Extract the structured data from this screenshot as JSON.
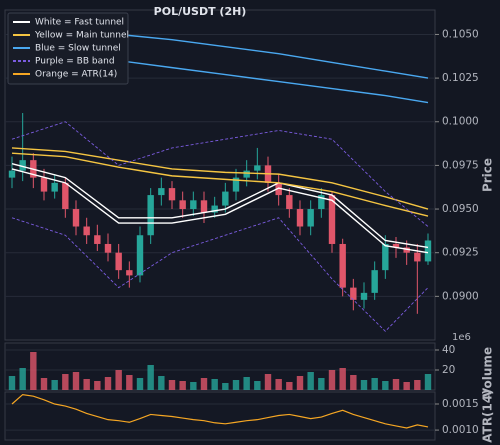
{
  "chart_data": {
    "type": "candlestick",
    "title": "POL/USDT (2H)",
    "up_color": "#26a69a",
    "down_color": "#e0566a",
    "grid": true,
    "legend": "upper left",
    "open": [
      0.0968,
      0.0972,
      0.0978,
      0.0968,
      0.096,
      0.0965,
      0.095,
      0.094,
      0.0935,
      0.093,
      0.0925,
      0.0915,
      0.0912,
      0.0935,
      0.0958,
      0.0962,
      0.0955,
      0.095,
      0.0955,
      0.0948,
      0.0952,
      0.096,
      0.0968,
      0.0972,
      0.0975,
      0.0965,
      0.0958,
      0.095,
      0.094,
      0.095,
      0.0958,
      0.093,
      0.0905,
      0.0898,
      0.0902,
      0.0915,
      0.093,
      0.0928,
      0.0925,
      0.092
    ],
    "high": [
      0.098,
      0.1005,
      0.0982,
      0.0973,
      0.097,
      0.0968,
      0.0955,
      0.0945,
      0.0941,
      0.0936,
      0.093,
      0.092,
      0.094,
      0.0962,
      0.0968,
      0.0966,
      0.096,
      0.096,
      0.096,
      0.0957,
      0.0965,
      0.0973,
      0.0978,
      0.0985,
      0.098,
      0.097,
      0.0962,
      0.0955,
      0.0955,
      0.0962,
      0.096,
      0.0933,
      0.091,
      0.0908,
      0.092,
      0.0935,
      0.0934,
      0.0932,
      0.093,
      0.0936
    ],
    "low": [
      0.0962,
      0.0966,
      0.0962,
      0.0955,
      0.0956,
      0.0945,
      0.0935,
      0.093,
      0.0926,
      0.092,
      0.091,
      0.0905,
      0.0908,
      0.093,
      0.0952,
      0.095,
      0.0945,
      0.0946,
      0.0942,
      0.0945,
      0.0948,
      0.0955,
      0.0963,
      0.0967,
      0.096,
      0.0952,
      0.0945,
      0.0935,
      0.0935,
      0.0945,
      0.0925,
      0.09,
      0.0892,
      0.0893,
      0.0898,
      0.091,
      0.0922,
      0.0918,
      0.089,
      0.0918
    ],
    "close": [
      0.0972,
      0.0978,
      0.0968,
      0.096,
      0.0965,
      0.095,
      0.094,
      0.0935,
      0.093,
      0.0925,
      0.0915,
      0.0912,
      0.0935,
      0.0958,
      0.0962,
      0.0955,
      0.095,
      0.0955,
      0.0948,
      0.0952,
      0.096,
      0.0968,
      0.0972,
      0.0975,
      0.0965,
      0.0958,
      0.095,
      0.094,
      0.095,
      0.0958,
      0.093,
      0.0905,
      0.0898,
      0.0902,
      0.0915,
      0.093,
      0.0928,
      0.0925,
      0.092,
      0.0932
    ],
    "ylim": [
      0.0875,
      0.1064
    ],
    "yticks": [
      {
        "value": 0.09,
        "label": "0.0900"
      },
      {
        "value": 0.0925,
        "label": "0.0925"
      },
      {
        "value": 0.095,
        "label": "0.0950"
      },
      {
        "value": 0.0975,
        "label": "0.0975"
      },
      {
        "value": 0.1,
        "label": "0.1000"
      },
      {
        "value": 0.1025,
        "label": "0.1025"
      },
      {
        "value": 0.105,
        "label": "0.1050"
      }
    ],
    "ylabel": "Price",
    "line_x": [
      0,
      5,
      10,
      15,
      20,
      25,
      30,
      35,
      39
    ],
    "bands": [
      {
        "name": "White = Fast tunnel",
        "color": "#ffffff",
        "dashed": false,
        "upper": [
          0.0976,
          0.0968,
          0.0945,
          0.0945,
          0.095,
          0.0965,
          0.0958,
          0.0932,
          0.0928
        ],
        "lower": [
          0.0973,
          0.0965,
          0.0942,
          0.0942,
          0.0947,
          0.0962,
          0.0955,
          0.0929,
          0.0925
        ]
      },
      {
        "name": "Yellow = Main tunnel",
        "color": "#f5c542",
        "dashed": false,
        "upper": [
          0.0985,
          0.0983,
          0.0978,
          0.0973,
          0.0971,
          0.097,
          0.0965,
          0.0957,
          0.095
        ],
        "lower": [
          0.0982,
          0.098,
          0.0974,
          0.0969,
          0.0967,
          0.0965,
          0.096,
          0.0952,
          0.0946
        ]
      },
      {
        "name": "Blue = Slow tunnel",
        "color": "#4aa8f0",
        "dashed": false,
        "upper": [
          0.106,
          0.1055,
          0.105,
          0.1047,
          0.1043,
          0.1039,
          0.1034,
          0.1029,
          0.1025
        ],
        "lower": [
          0.1045,
          0.104,
          0.1035,
          0.1031,
          0.1027,
          0.1023,
          0.1019,
          0.1015,
          0.1011
        ]
      },
      {
        "name": "Purple = BB band",
        "color": "#7b5ce0",
        "dashed": true,
        "upper": [
          0.099,
          0.1,
          0.0975,
          0.0985,
          0.099,
          0.0995,
          0.099,
          0.096,
          0.094
        ],
        "lower": [
          0.0945,
          0.0935,
          0.0905,
          0.0925,
          0.0935,
          0.0945,
          0.091,
          0.088,
          0.0905
        ]
      }
    ],
    "volume": {
      "label": "Volume",
      "offset": "1e6",
      "ylim": [
        0,
        47
      ],
      "yticks": [
        20,
        40
      ],
      "values": [
        14,
        22,
        38,
        12,
        10,
        16,
        18,
        11,
        9,
        13,
        20,
        15,
        12,
        25,
        14,
        10,
        9,
        8,
        12,
        11,
        7,
        10,
        13,
        9,
        16,
        11,
        8,
        14,
        18,
        12,
        20,
        22,
        15,
        10,
        12,
        9,
        11,
        8,
        10,
        16
      ]
    },
    "atr": {
      "name": "Orange = ATR(14)",
      "label": "ATR(14)",
      "color": "#f5a623",
      "ylim": [
        0.00081,
        0.00173
      ],
      "yticks": [
        {
          "value": 0.001,
          "label": "0.0010"
        },
        {
          "value": 0.0015,
          "label": "0.0015"
        }
      ],
      "values": [
        0.0015,
        0.00168,
        0.00165,
        0.00158,
        0.0015,
        0.00146,
        0.0014,
        0.00132,
        0.00126,
        0.0012,
        0.00118,
        0.00115,
        0.00122,
        0.0013,
        0.00128,
        0.00126,
        0.00123,
        0.0012,
        0.00118,
        0.00114,
        0.00112,
        0.00115,
        0.00118,
        0.0012,
        0.00124,
        0.00128,
        0.0013,
        0.00126,
        0.00122,
        0.00125,
        0.00132,
        0.00138,
        0.0013,
        0.00124,
        0.00118,
        0.00112,
        0.00108,
        0.00104,
        0.0011,
        0.00106
      ]
    }
  }
}
